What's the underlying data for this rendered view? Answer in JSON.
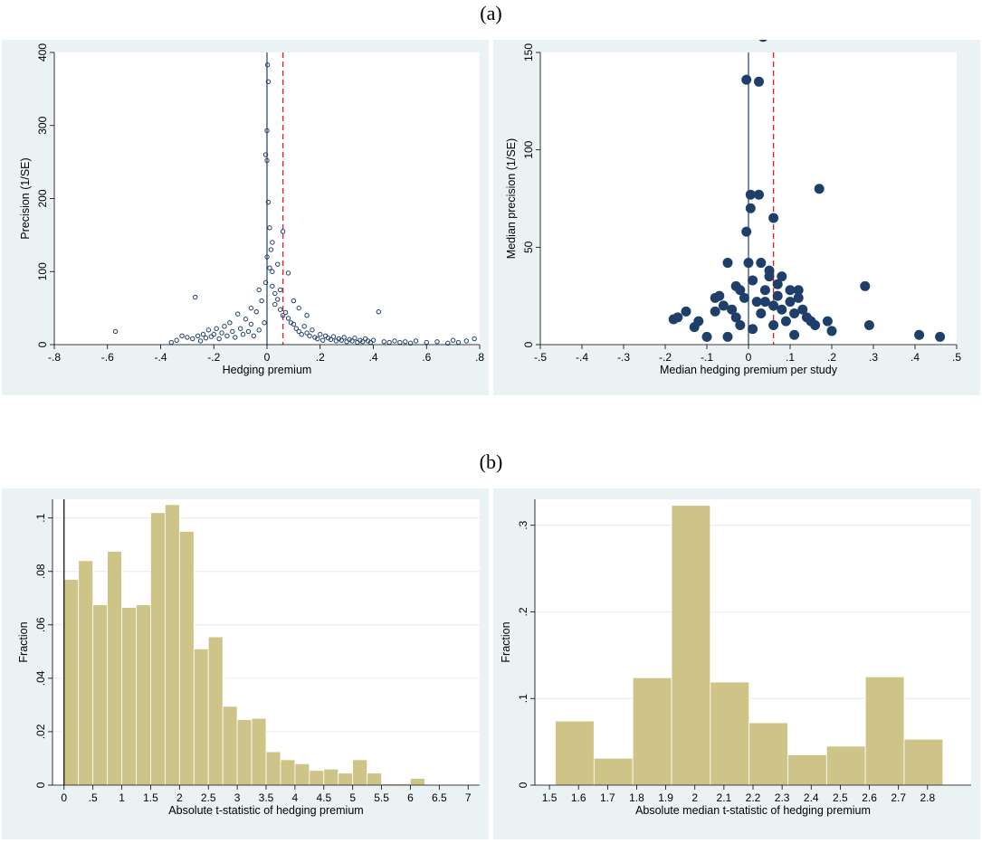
{
  "labels": {
    "a": "(a)",
    "b": "(b)"
  },
  "chart_data": [
    {
      "id": "a1",
      "type": "scatter",
      "xlabel": "Hedging premium",
      "ylabel": "Precision (1/SE)",
      "xlim": [
        -0.8,
        0.8
      ],
      "ylim": [
        0,
        400
      ],
      "xticks": [
        "-.8",
        "-.6",
        "-.4",
        "-.2",
        "0",
        ".2",
        ".4",
        ".6",
        ".8"
      ],
      "yticks": [
        "0",
        "100",
        "200",
        "300",
        "400"
      ],
      "vline_solid": 0,
      "vline_dashed": 0.06,
      "marker": "hollow-circle",
      "color": "#1f3f6b",
      "ref_color": "#e0242a",
      "points": [
        [
          -0.57,
          18
        ],
        [
          -0.36,
          3
        ],
        [
          -0.34,
          6
        ],
        [
          -0.32,
          12
        ],
        [
          -0.3,
          10
        ],
        [
          -0.28,
          8
        ],
        [
          -0.27,
          65
        ],
        [
          -0.26,
          12
        ],
        [
          -0.25,
          5
        ],
        [
          -0.24,
          14
        ],
        [
          -0.23,
          9
        ],
        [
          -0.22,
          20
        ],
        [
          -0.21,
          11
        ],
        [
          -0.2,
          14
        ],
        [
          -0.19,
          22
        ],
        [
          -0.18,
          8
        ],
        [
          -0.17,
          16
        ],
        [
          -0.16,
          25
        ],
        [
          -0.15,
          12
        ],
        [
          -0.14,
          30
        ],
        [
          -0.13,
          18
        ],
        [
          -0.12,
          10
        ],
        [
          -0.11,
          42
        ],
        [
          -0.1,
          22
        ],
        [
          -0.09,
          14
        ],
        [
          -0.08,
          35
        ],
        [
          -0.07,
          18
        ],
        [
          -0.06,
          28
        ],
        [
          -0.05,
          12
        ],
        [
          -0.04,
          45
        ],
        [
          -0.03,
          20
        ],
        [
          -0.02,
          60
        ],
        [
          -0.01,
          30
        ],
        [
          -0.005,
          85
        ],
        [
          0,
          120
        ],
        [
          0.002,
          383
        ],
        [
          0.005,
          360
        ],
        [
          0,
          293
        ],
        [
          -0.005,
          260
        ],
        [
          0,
          252
        ],
        [
          0.005,
          195
        ],
        [
          0.01,
          160
        ],
        [
          0.015,
          130
        ],
        [
          0.01,
          105
        ],
        [
          0.02,
          100
        ],
        [
          0.02,
          80
        ],
        [
          0.03,
          70
        ],
        [
          0.03,
          55
        ],
        [
          0.04,
          62
        ],
        [
          0.05,
          48
        ],
        [
          0.06,
          40
        ],
        [
          0.07,
          44
        ],
        [
          0.08,
          36
        ],
        [
          0.09,
          30
        ],
        [
          0.1,
          28
        ],
        [
          0.11,
          22
        ],
        [
          0.12,
          18
        ],
        [
          0.13,
          14
        ],
        [
          0.14,
          25
        ],
        [
          0.15,
          16
        ],
        [
          0.16,
          12
        ],
        [
          0.17,
          20
        ],
        [
          0.18,
          10
        ],
        [
          0.19,
          8
        ],
        [
          0.2,
          14
        ],
        [
          0.21,
          6
        ],
        [
          0.22,
          12
        ],
        [
          0.23,
          9
        ],
        [
          0.24,
          7
        ],
        [
          0.25,
          11
        ],
        [
          0.26,
          5
        ],
        [
          0.27,
          8
        ],
        [
          0.28,
          6
        ],
        [
          0.29,
          10
        ],
        [
          0.3,
          4
        ],
        [
          0.31,
          7
        ],
        [
          0.32,
          5
        ],
        [
          0.33,
          9
        ],
        [
          0.34,
          3
        ],
        [
          0.35,
          6
        ],
        [
          0.36,
          4
        ],
        [
          0.37,
          8
        ],
        [
          0.38,
          5
        ],
        [
          0.39,
          3
        ],
        [
          0.4,
          6
        ],
        [
          0.42,
          45
        ],
        [
          0.44,
          4
        ],
        [
          0.46,
          3
        ],
        [
          0.48,
          5
        ],
        [
          0.5,
          3
        ],
        [
          0.52,
          4
        ],
        [
          0.54,
          2
        ],
        [
          0.56,
          5
        ],
        [
          0.6,
          3
        ],
        [
          0.64,
          4
        ],
        [
          0.68,
          2
        ],
        [
          0.7,
          6
        ],
        [
          0.72,
          3
        ],
        [
          0.75,
          5
        ],
        [
          0.78,
          8
        ],
        [
          0.08,
          98
        ],
        [
          0.06,
          155
        ],
        [
          0.04,
          110
        ],
        [
          0.05,
          75
        ],
        [
          0.1,
          60
        ],
        [
          0.12,
          50
        ],
        [
          0.15,
          40
        ],
        [
          -0.03,
          75
        ],
        [
          -0.06,
          50
        ],
        [
          0.02,
          140
        ]
      ]
    },
    {
      "id": "a2",
      "type": "scatter",
      "xlabel": "Median hedging premium per study",
      "ylabel": "Median precision (1/SE)",
      "xlim": [
        -0.5,
        0.5
      ],
      "ylim": [
        0,
        150
      ],
      "xticks": [
        "-.5",
        "-.4",
        "-.3",
        "-.2",
        "-.1",
        "0",
        ".1",
        ".2",
        ".3",
        ".4",
        ".5"
      ],
      "yticks": [
        "0",
        "50",
        "100",
        "150"
      ],
      "vline_solid": 0,
      "vline_dashed": 0.06,
      "marker": "filled-circle",
      "color": "#1f3f6b",
      "ref_color": "#e0242a",
      "points": [
        [
          0.035,
          158
        ],
        [
          -0.005,
          136
        ],
        [
          0.025,
          135
        ],
        [
          0.17,
          80
        ],
        [
          0.005,
          77
        ],
        [
          0.025,
          77
        ],
        [
          0.005,
          70
        ],
        [
          0.06,
          65
        ],
        [
          -0.005,
          58
        ],
        [
          0.28,
          30
        ],
        [
          0.29,
          10
        ],
        [
          0.41,
          5
        ],
        [
          0.46,
          4
        ],
        [
          -0.18,
          13
        ],
        [
          -0.17,
          14
        ],
        [
          -0.15,
          17
        ],
        [
          -0.13,
          9
        ],
        [
          -0.12,
          12
        ],
        [
          -0.1,
          4
        ],
        [
          -0.08,
          17
        ],
        [
          -0.07,
          25
        ],
        [
          -0.06,
          20
        ],
        [
          -0.05,
          4
        ],
        [
          -0.05,
          42
        ],
        [
          -0.04,
          18
        ],
        [
          -0.03,
          30
        ],
        [
          -0.03,
          14
        ],
        [
          -0.02,
          10
        ],
        [
          -0.01,
          24
        ],
        [
          0,
          42
        ],
        [
          0.01,
          33
        ],
        [
          0.01,
          8
        ],
        [
          0.02,
          22
        ],
        [
          0.03,
          42
        ],
        [
          0.03,
          16
        ],
        [
          0.04,
          28
        ],
        [
          0.05,
          35
        ],
        [
          0.05,
          38
        ],
        [
          0.06,
          20
        ],
        [
          0.06,
          10
        ],
        [
          0.07,
          31
        ],
        [
          0.07,
          25
        ],
        [
          0.08,
          18
        ],
        [
          0.09,
          12
        ],
        [
          0.1,
          28
        ],
        [
          0.1,
          22
        ],
        [
          0.11,
          16
        ],
        [
          0.11,
          5
        ],
        [
          0.12,
          24
        ],
        [
          0.12,
          28
        ],
        [
          0.13,
          18
        ],
        [
          0.14,
          14
        ],
        [
          0.15,
          12
        ],
        [
          0.16,
          10
        ],
        [
          0.19,
          12
        ],
        [
          0.2,
          7
        ],
        [
          0.08,
          35
        ],
        [
          -0.08,
          24
        ],
        [
          -0.02,
          28
        ],
        [
          0.04,
          22
        ]
      ]
    },
    {
      "id": "b1",
      "type": "bar",
      "xlabel": "Absolute t-statistic of hedging premium",
      "ylabel": "Fraction",
      "xlim": [
        -0.2,
        7.2
      ],
      "ylim": [
        0,
        0.107
      ],
      "xticks": [
        "0",
        ".5",
        "1",
        "1.5",
        "2",
        "2.5",
        "3",
        "3.5",
        "4",
        "4.5",
        "5",
        "5.5",
        "6",
        "6.5",
        "7"
      ],
      "xtick_values": [
        0,
        0.5,
        1,
        1.5,
        2,
        2.5,
        3,
        3.5,
        4,
        4.5,
        5,
        5.5,
        6,
        6.5,
        7
      ],
      "yticks": [
        "0",
        ".02",
        ".04",
        ".06",
        ".08",
        ".1"
      ],
      "ytick_values": [
        0,
        0.02,
        0.04,
        0.06,
        0.08,
        0.1
      ],
      "bin_start": 0,
      "bin_width": 0.25,
      "vline_solid": 0,
      "color": "#cec487",
      "values": [
        0.077,
        0.084,
        0.0675,
        0.0875,
        0.0665,
        0.0675,
        0.102,
        0.105,
        0.095,
        0.051,
        0.0555,
        0.0295,
        0.0245,
        0.025,
        0.0125,
        0.0095,
        0.008,
        0.0055,
        0.006,
        0.0045,
        0.0095,
        0.0045,
        0.0005,
        0.0005,
        0.0025
      ]
    },
    {
      "id": "b2",
      "type": "bar",
      "xlabel": "Absolute median t-statistic of hedging premium",
      "ylabel": "Fraction",
      "xlim": [
        1.45,
        2.95
      ],
      "ylim": [
        0,
        0.33
      ],
      "xticks": [
        "1.5",
        "1.6",
        "1.7",
        "1.8",
        "1.9",
        "2",
        "2.1",
        "2.2",
        "2.3",
        "2.4",
        "2.5",
        "2.6",
        "2.7",
        "2.8"
      ],
      "xtick_values": [
        1.5,
        1.6,
        1.7,
        1.8,
        1.9,
        2,
        2.1,
        2.2,
        2.3,
        2.4,
        2.5,
        2.6,
        2.7,
        2.8
      ],
      "yticks": [
        "0",
        ".1",
        ".2",
        ".3"
      ],
      "ytick_values": [
        0,
        0.1,
        0.2,
        0.3
      ],
      "bin_start": 1.52,
      "bin_width": 0.1333,
      "color": "#cec487",
      "values": [
        0.074,
        0.031,
        0.124,
        0.323,
        0.119,
        0.072,
        0.035,
        0.045,
        0.125,
        0.053
      ]
    }
  ]
}
